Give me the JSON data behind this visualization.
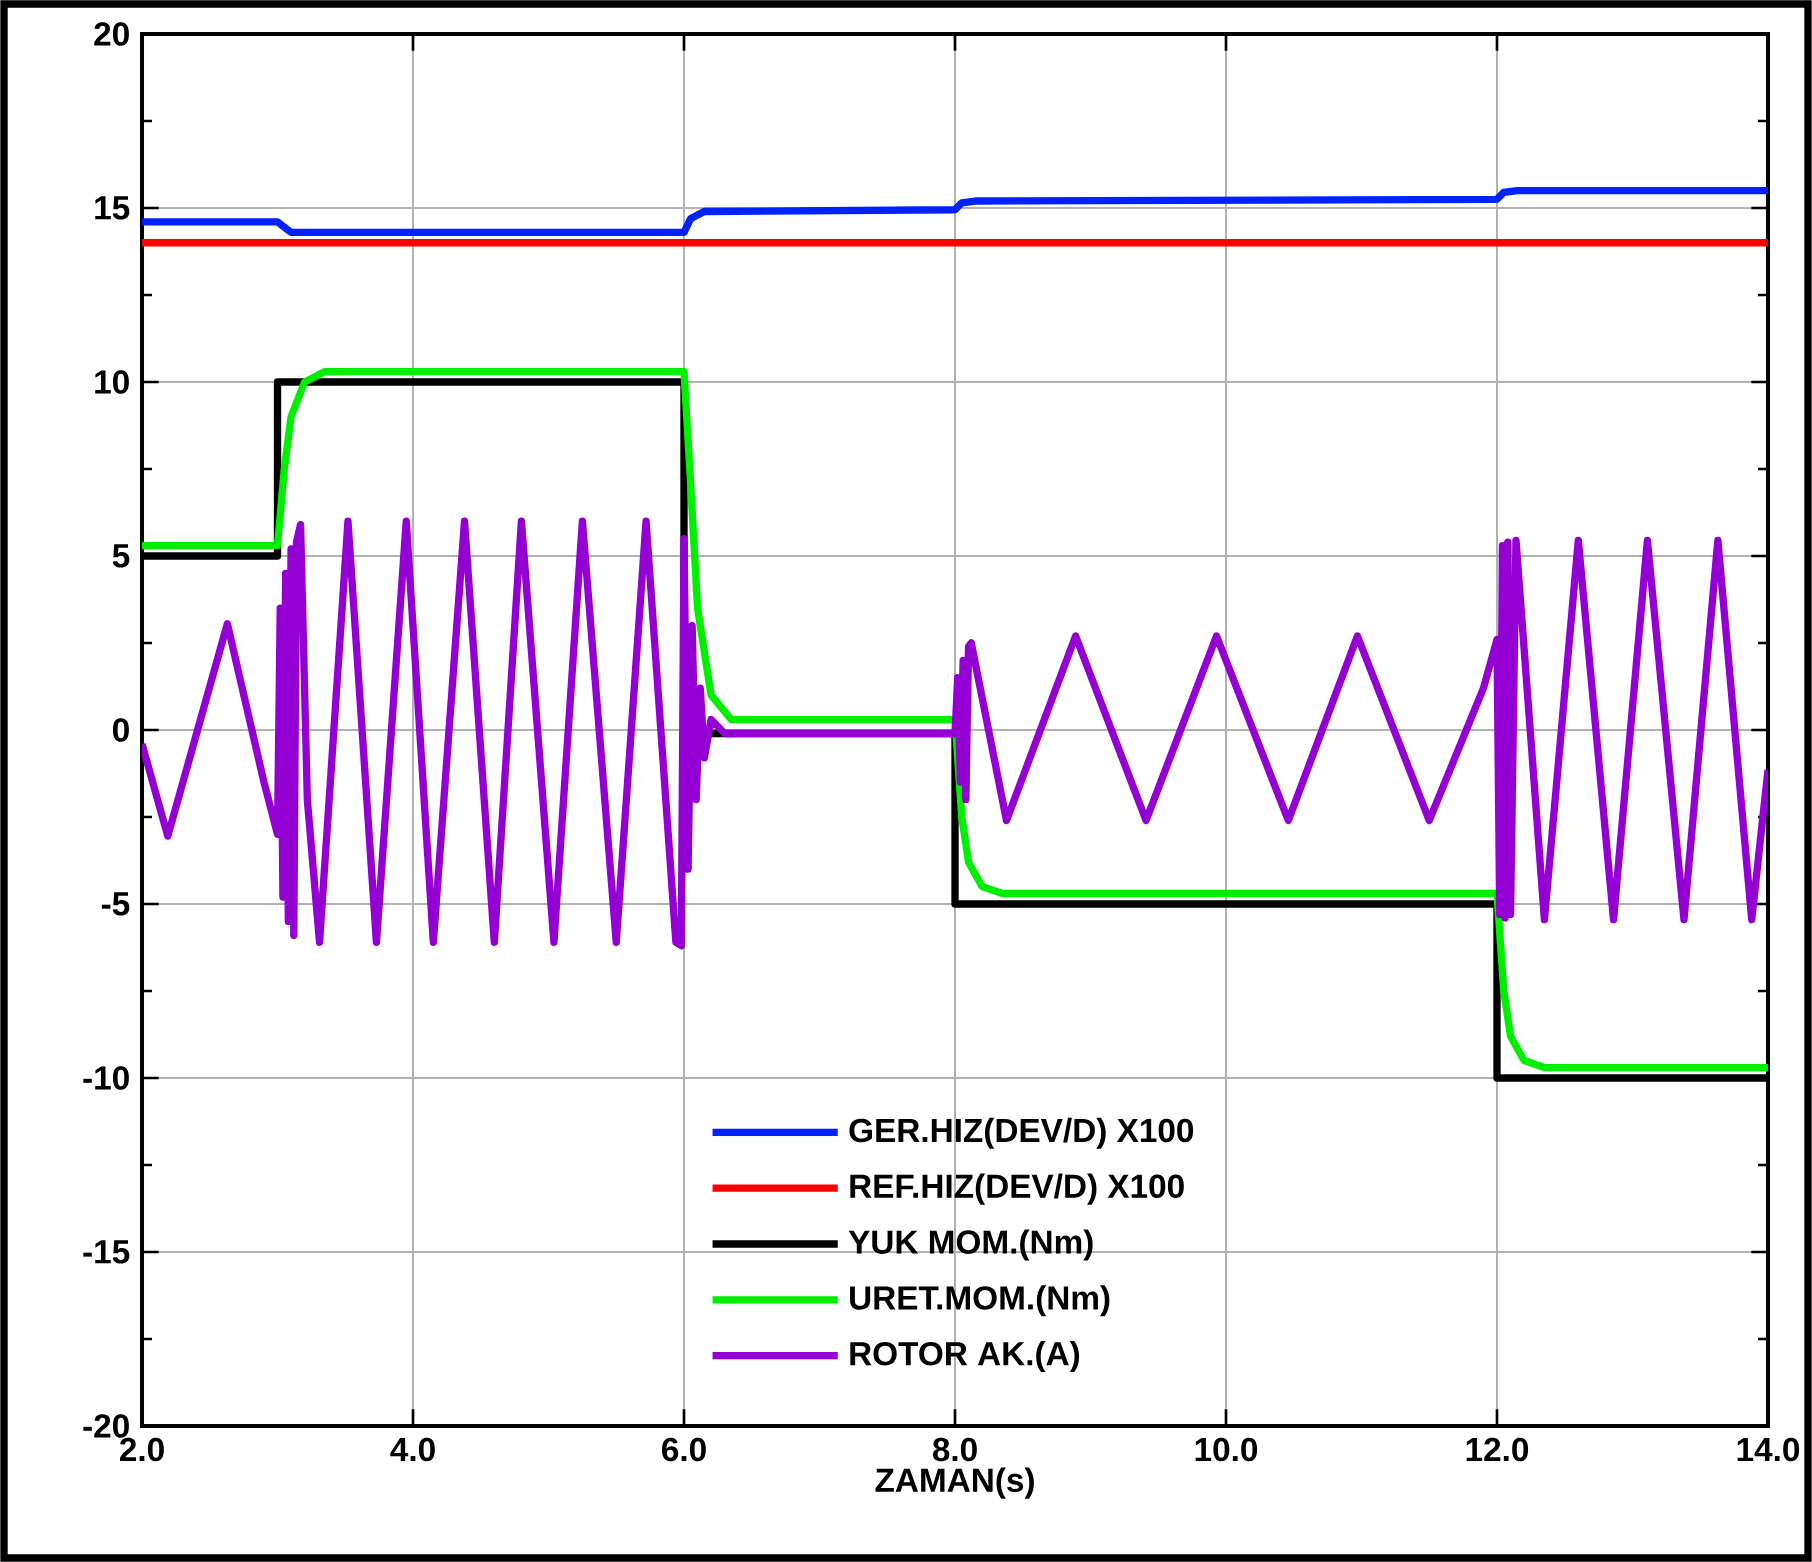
{
  "chart_data": {
    "type": "line",
    "xlabel": "ZAMAN(s)",
    "xlim": [
      2,
      14
    ],
    "xticks": [
      {
        "value": 2,
        "label": "2.0"
      },
      {
        "value": 4,
        "label": "4.0"
      },
      {
        "value": 6,
        "label": "6.0"
      },
      {
        "value": 8,
        "label": "8.0"
      },
      {
        "value": 10,
        "label": "10.0"
      },
      {
        "value": 12,
        "label": "12.0"
      },
      {
        "value": 14,
        "label": "14.0"
      }
    ],
    "ylim": [
      -20,
      20
    ],
    "yticks": [
      -20,
      -15,
      -10,
      -5,
      0,
      5,
      10,
      15,
      20
    ],
    "grid": true,
    "legend": "bottom",
    "series": [
      {
        "name": "GER.HIZ(DEV/D) X100",
        "color": "#0022ff",
        "x": [
          2,
          3.0,
          3.1,
          6.0,
          6.05,
          6.15,
          8.0,
          8.05,
          8.15,
          12.0,
          12.05,
          12.15,
          14
        ],
        "values": [
          14.6,
          14.6,
          14.3,
          14.3,
          14.7,
          14.9,
          14.95,
          15.15,
          15.2,
          15.25,
          15.45,
          15.5,
          15.5
        ]
      },
      {
        "name": "REF.HIZ(DEV/D) X100",
        "color": "#ff0000",
        "x": [
          2,
          14
        ],
        "values": [
          14.0,
          14.0
        ]
      },
      {
        "name": "YUK MOM.(Nm)",
        "color": "#000000",
        "x": [
          2,
          3.0,
          3.0,
          6.0,
          6.0,
          8.0,
          8.0,
          12.0,
          12.0,
          14
        ],
        "values": [
          5,
          5,
          10,
          10,
          -0.1,
          -0.1,
          -5,
          -5,
          -10,
          -10
        ]
      },
      {
        "name": "URET.MOM.(Nm)",
        "color": "#00ee00",
        "x": [
          2,
          3.0,
          3.05,
          3.1,
          3.2,
          3.35,
          6.0,
          6.05,
          6.1,
          6.2,
          6.35,
          8.0,
          8.05,
          8.1,
          8.2,
          8.35,
          12.0,
          12.05,
          12.1,
          12.2,
          12.35,
          14
        ],
        "values": [
          5.3,
          5.3,
          7.5,
          9.0,
          10.0,
          10.3,
          10.3,
          7.0,
          3.5,
          1.0,
          0.3,
          0.3,
          -2.5,
          -3.8,
          -4.5,
          -4.7,
          -4.7,
          -7.5,
          -8.8,
          -9.5,
          -9.7,
          -9.7
        ]
      },
      {
        "name": "ROTOR AK.(A)",
        "color": "#9400d3",
        "x": [
          2.0,
          2.19,
          2.63,
          2.9,
          3.0,
          3.02,
          3.04,
          3.06,
          3.08,
          3.1,
          3.12,
          3.14,
          3.17,
          3.22,
          3.31,
          3.52,
          3.73,
          3.95,
          4.15,
          4.38,
          4.6,
          4.8,
          5.04,
          5.25,
          5.5,
          5.72,
          5.94,
          5.98,
          6.0,
          6.03,
          6.06,
          6.09,
          6.12,
          6.15,
          6.2,
          6.3,
          8.0,
          8.02,
          8.04,
          8.06,
          8.08,
          8.1,
          8.12,
          8.38,
          8.89,
          9.41,
          9.93,
          10.46,
          10.97,
          11.5,
          11.9,
          12.0,
          12.02,
          12.04,
          12.06,
          12.08,
          12.1,
          12.14,
          12.35,
          12.6,
          12.86,
          13.11,
          13.38,
          13.63,
          13.88,
          14.0
        ],
        "values": [
          -0.4,
          -3.05,
          3.05,
          -1.5,
          -3.0,
          3.5,
          -4.8,
          4.5,
          -5.5,
          5.2,
          -5.9,
          5.4,
          5.9,
          -2.0,
          -6.1,
          6.0,
          -6.1,
          6.0,
          -6.1,
          6.0,
          -6.1,
          6.0,
          -6.1,
          6.0,
          -6.1,
          6.0,
          -6.1,
          -6.2,
          5.5,
          -4.0,
          3.0,
          -2.0,
          1.2,
          -0.8,
          0.3,
          -0.1,
          -0.1,
          1.5,
          -1.5,
          2.0,
          -2.0,
          2.4,
          2.5,
          -2.6,
          2.7,
          -2.6,
          2.7,
          -2.6,
          2.7,
          -2.6,
          1.2,
          2.6,
          -5.3,
          5.3,
          -5.4,
          5.4,
          -5.3,
          5.45,
          -5.45,
          5.45,
          -5.45,
          5.45,
          -5.45,
          5.45,
          -5.45,
          -1.15
        ]
      }
    ]
  }
}
